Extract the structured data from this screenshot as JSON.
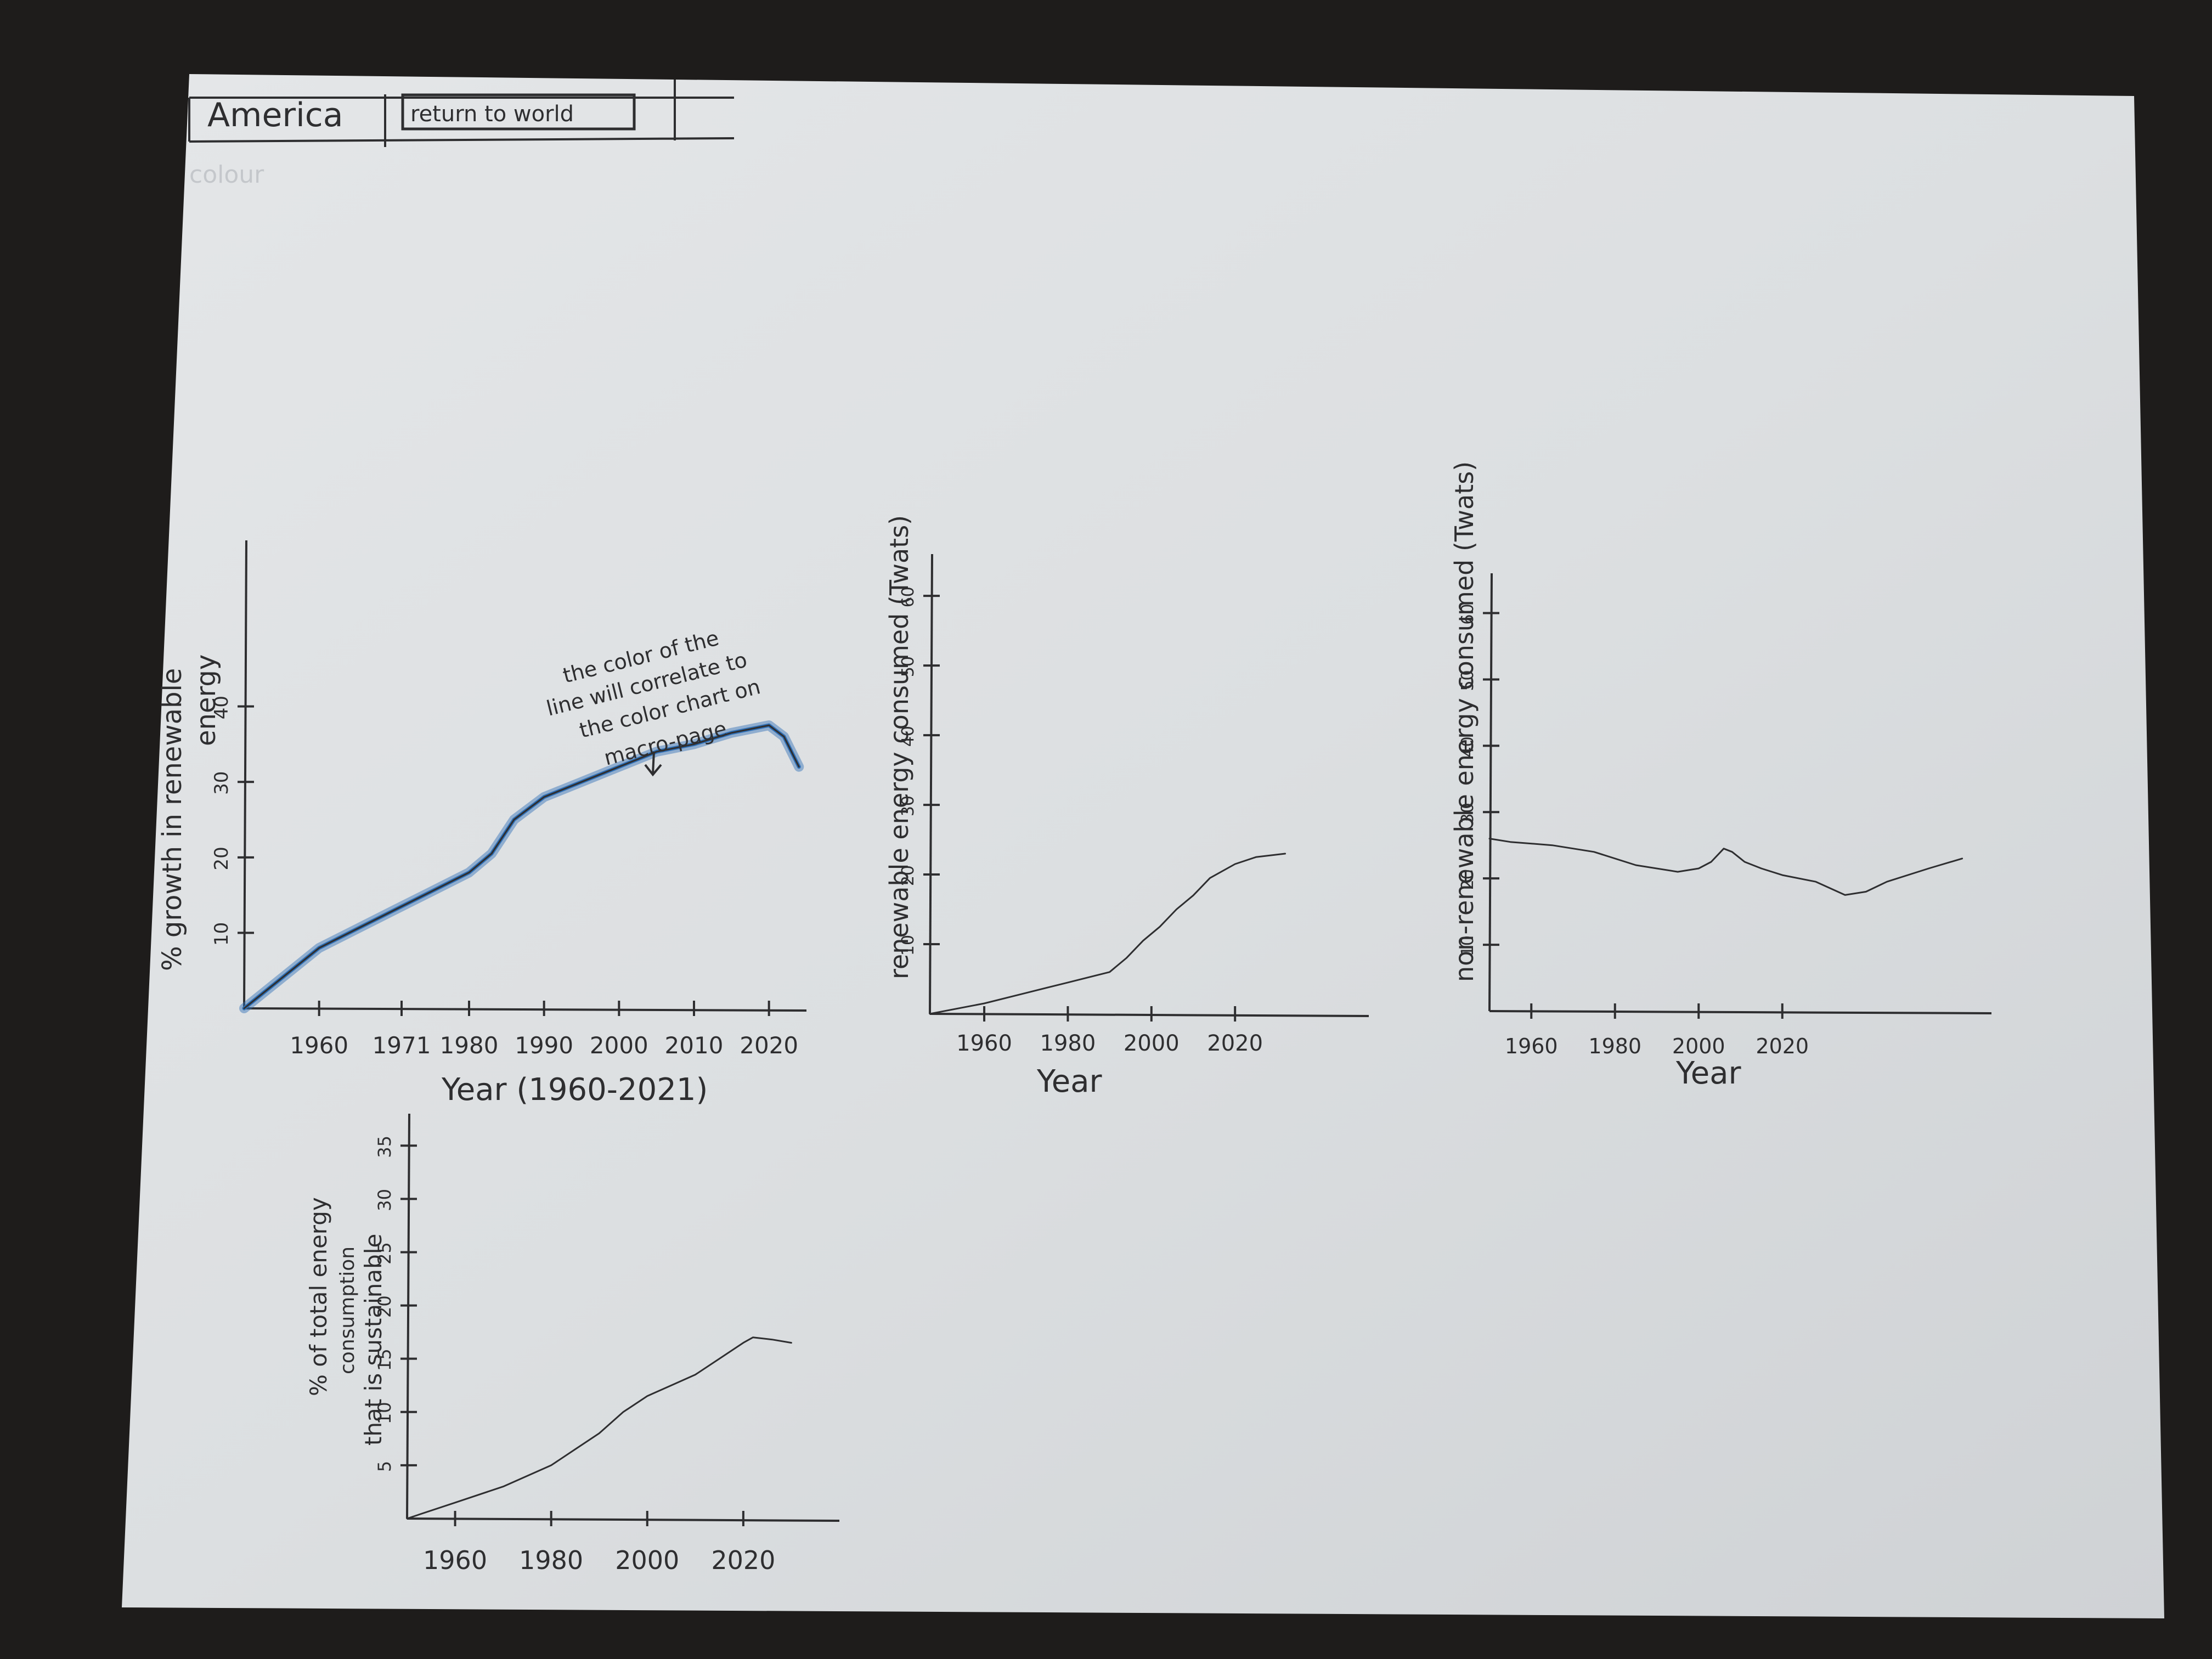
{
  "header": {
    "region_tab": "America",
    "return_button": "return to world",
    "faint_label": "colour"
  },
  "annotation": {
    "text_lines": [
      "the color of the",
      "line will correlate to",
      "the color chart on",
      "macro-page"
    ]
  },
  "colors": {
    "ink": "#2e2e30",
    "highlight": "#2f6fb5",
    "paper": "#dfe1e3",
    "desk": "#1e1c1b"
  },
  "chart_data": [
    {
      "id": "growth",
      "type": "line",
      "ylabel_lines": [
        "% growth in renewable",
        "energy"
      ],
      "xlabel": "Year (1960-2021)",
      "x_ticks": [
        "1960",
        "1971",
        "1980",
        "1990",
        "2000",
        "2010",
        "2020"
      ],
      "y_ticks": [
        "10",
        "20",
        "30",
        "40"
      ],
      "xlim": [
        1950,
        2025
      ],
      "ylim": [
        0,
        62
      ],
      "x": [
        1950,
        1955,
        1960,
        1965,
        1970,
        1975,
        1980,
        1983,
        1986,
        1990,
        1995,
        2000,
        2005,
        2010,
        2015,
        2020,
        2022,
        2024
      ],
      "y": [
        0,
        4,
        8,
        10.5,
        13,
        15.5,
        18,
        20.5,
        25,
        28,
        30,
        32,
        34,
        35,
        36.5,
        37.5,
        36,
        32
      ]
    },
    {
      "id": "renewable",
      "type": "line",
      "ylabel": "renewable energy consumed (Twats)",
      "xlabel": "Year",
      "x_ticks": [
        "1960",
        "1980",
        "2000",
        "2020"
      ],
      "y_ticks": [
        "10",
        "20",
        "30",
        "40",
        "50",
        "60"
      ],
      "xlim": [
        1947,
        2052
      ],
      "ylim": [
        0,
        66
      ],
      "x": [
        1947,
        1960,
        1970,
        1980,
        1990,
        1994,
        1998,
        2002,
        2006,
        2010,
        2014,
        2020,
        2025,
        2032
      ],
      "y": [
        0,
        1.5,
        3,
        4.5,
        6,
        8,
        10.5,
        12.5,
        15,
        17,
        19.5,
        21.5,
        22.5,
        23
      ]
    },
    {
      "id": "nonrenewable",
      "type": "line",
      "ylabel": "non-renewable energy consumed (Twats)",
      "xlabel": "Year",
      "x_ticks": [
        "1960",
        "1980",
        "2000",
        "2020"
      ],
      "y_ticks": [
        "10",
        "20",
        "30",
        "40",
        "50",
        "60"
      ],
      "xlim": [
        1950,
        2070
      ],
      "ylim": [
        0,
        66
      ],
      "x": [
        1950,
        1955,
        1965,
        1975,
        1985,
        1995,
        2000,
        2003,
        2006,
        2008,
        2011,
        2015,
        2020,
        2028,
        2035,
        2040,
        2045,
        2055,
        2063
      ],
      "y": [
        26,
        25.5,
        25,
        24,
        22,
        21,
        21.5,
        22.5,
        24.5,
        24,
        22.5,
        21.5,
        20.5,
        19.5,
        17.5,
        18,
        19.5,
        21.5,
        23
      ]
    },
    {
      "id": "sustainable_share",
      "type": "line",
      "ylabel_lines": [
        "% of total energy",
        "consumption",
        "that is sustainable"
      ],
      "xlabel": "",
      "x_ticks": [
        "1960",
        "1980",
        "2000",
        "2020"
      ],
      "y_ticks": [
        "5",
        "10",
        "15",
        "20",
        "25",
        "30",
        "35"
      ],
      "xlim": [
        1950,
        2040
      ],
      "ylim": [
        0,
        38
      ],
      "x": [
        1950,
        1960,
        1970,
        1980,
        1985,
        1990,
        1995,
        2000,
        2005,
        2010,
        2015,
        2020,
        2022,
        2026,
        2030
      ],
      "y": [
        0,
        1.5,
        3,
        5,
        6.5,
        8,
        10,
        11.5,
        12.5,
        13.5,
        15,
        16.5,
        17,
        16.8,
        16.5
      ]
    }
  ]
}
